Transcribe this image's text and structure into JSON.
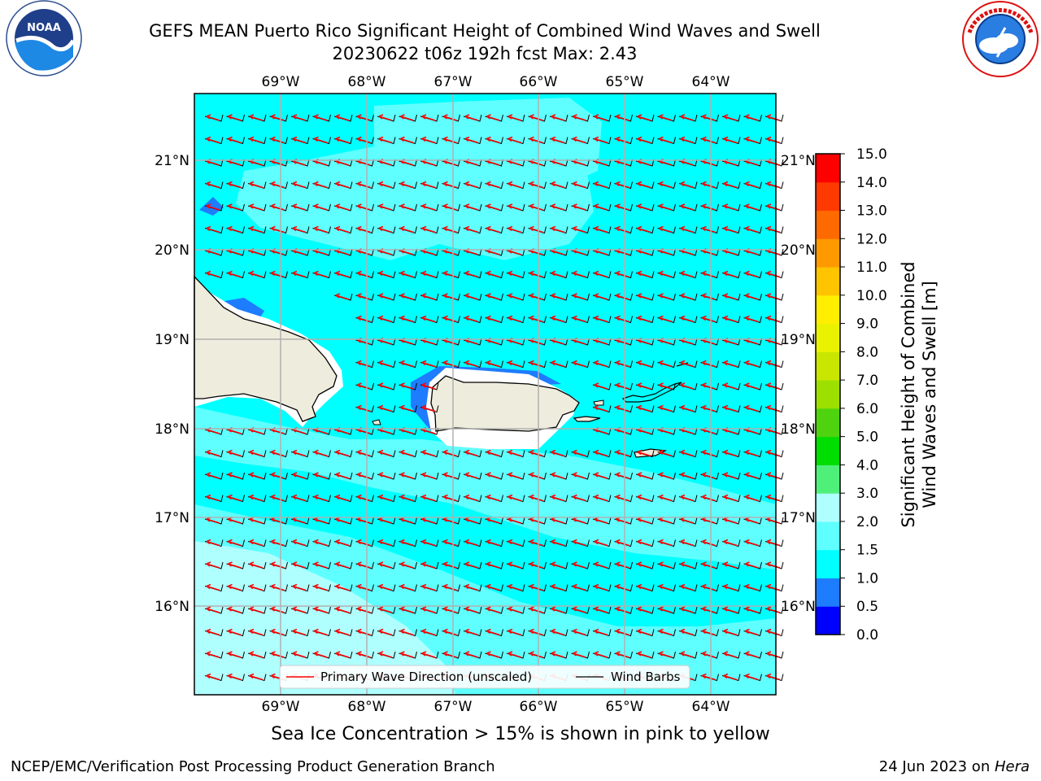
{
  "title": {
    "line1": "GEFS MEAN Puerto Rico Significant Height of Combined Wind Waves and Swell",
    "line2": "20230622 t06z 192h fcst   Max: 2.43"
  },
  "logos": {
    "noaa_text": "NOAA",
    "noaa_ring": "NATIONAL OCEANIC AND ATMOSPHERIC ADMINISTRATION · U.S. DEPARTMENT OF COMMERCE",
    "nws_ring": "NATIONAL WEATHER SERVICE"
  },
  "map": {
    "lon_labels": [
      "69°W",
      "68°W",
      "67°W",
      "66°W",
      "65°W",
      "64°W"
    ],
    "lat_labels": [
      "21°N",
      "20°N",
      "19°N",
      "18°N",
      "17°N",
      "16°N"
    ],
    "legend": {
      "wave_direction": "Primary Wave Direction (unscaled)",
      "wind_barbs": "Wind Barbs"
    },
    "colors": {
      "ocean_1_0_1_5": "#00ffff",
      "ocean_1_5_2_0": "#5fffff",
      "ocean_2_0_3_0": "#b0ffff",
      "ocean_0_5_1_0": "#1e7cff",
      "land": "#eeecdc",
      "arrow": "#ff0000"
    }
  },
  "colorbar": {
    "label_line1": "Significant Height of Combined",
    "label_line2": "Wind Waves and Swell [m]",
    "ticks": [
      "0.0",
      "0.5",
      "1.0",
      "1.5",
      "2.0",
      "3.0",
      "4.0",
      "5.0",
      "6.0",
      "7.0",
      "8.0",
      "9.0",
      "10.0",
      "11.0",
      "12.0",
      "13.0",
      "14.0",
      "15.0"
    ],
    "colors": [
      "#0000ff",
      "#1e7cff",
      "#00ffff",
      "#5fffff",
      "#b0ffff",
      "#4ff07a",
      "#00dd00",
      "#4fd30f",
      "#9de000",
      "#c8e600",
      "#eaf200",
      "#ffee00",
      "#ffc400",
      "#ff9900",
      "#ff6a00",
      "#ff3a00",
      "#ff0000"
    ]
  },
  "note": "Sea Ice Concentration > 15% is shown in pink to yellow",
  "footer": {
    "left": "NCEP/EMC/Verification Post Processing Product Generation Branch",
    "right_prefix": "24 Jun 2023 on ",
    "right_host": "Hera"
  }
}
